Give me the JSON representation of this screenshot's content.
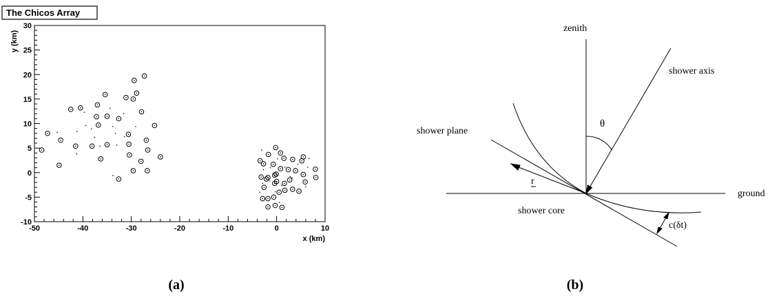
{
  "panel_a": {
    "title": "The Chicos Array",
    "caption": "(a)"
  },
  "panel_b": {
    "caption": "(b)",
    "labels": {
      "zenith": "zenith",
      "shower_axis": "shower axis",
      "theta": "θ",
      "shower_plane": "shower plane",
      "r_perp": "r",
      "ground": "ground",
      "shower_core": "shower core",
      "c_delta_t": "c(δt)"
    }
  },
  "chart_data": {
    "type": "scatter",
    "title": "The Chicos Array",
    "xlabel": "x (km)",
    "ylabel": "y (km)",
    "xlim": [
      -50,
      10
    ],
    "ylim": [
      -10,
      30
    ],
    "xticks": [
      -50,
      -40,
      -30,
      -20,
      -10,
      0,
      10
    ],
    "yticks": [
      -10,
      -5,
      0,
      5,
      10,
      15,
      20,
      25,
      30
    ],
    "grid": false,
    "series": [
      {
        "marker": "circle-dot",
        "points": [
          [
            -27.3,
            19.7
          ],
          [
            -29.4,
            18.8
          ],
          [
            -28.9,
            16.2
          ],
          [
            -35.4,
            15.9
          ],
          [
            -31.1,
            15.3
          ],
          [
            -29.6,
            15.0
          ],
          [
            -37.0,
            13.8
          ],
          [
            -40.5,
            13.2
          ],
          [
            -42.5,
            12.9
          ],
          [
            -27.9,
            12.4
          ],
          [
            -35.0,
            11.5
          ],
          [
            -37.2,
            11.4
          ],
          [
            -32.6,
            11.0
          ],
          [
            -36.8,
            9.7
          ],
          [
            -25.2,
            9.6
          ],
          [
            -47.3,
            8.0
          ],
          [
            -30.6,
            7.8
          ],
          [
            -26.9,
            6.6
          ],
          [
            -44.6,
            6.6
          ],
          [
            -30.5,
            5.8
          ],
          [
            -35.0,
            5.7
          ],
          [
            -38.1,
            5.4
          ],
          [
            -41.5,
            5.4
          ],
          [
            -48.5,
            4.6
          ],
          [
            -26.6,
            4.6
          ],
          [
            -30.4,
            3.6
          ],
          [
            -24.0,
            3.2
          ],
          [
            -36.3,
            2.8
          ],
          [
            -28.0,
            2.3
          ],
          [
            -44.9,
            1.5
          ],
          [
            -29.6,
            0.4
          ],
          [
            -26.7,
            0.4
          ],
          [
            -32.6,
            -1.3
          ],
          [
            -0.2,
            5.1
          ],
          [
            0.8,
            4.0
          ],
          [
            -1.7,
            3.7
          ],
          [
            5.5,
            3.2
          ],
          [
            1.5,
            2.9
          ],
          [
            5.2,
            2.4
          ],
          [
            -3.4,
            2.4
          ],
          [
            3.3,
            2.7
          ],
          [
            -2.7,
            1.8
          ],
          [
            -0.7,
            1.7
          ],
          [
            0.8,
            0.8
          ],
          [
            2.4,
            0.6
          ],
          [
            3.9,
            0.4
          ],
          [
            8.0,
            0.7
          ],
          [
            -0.1,
            -0.3
          ],
          [
            -0.4,
            -0.5
          ],
          [
            5.5,
            -0.4
          ],
          [
            -3.2,
            -0.9
          ],
          [
            8.1,
            -1.0
          ],
          [
            -1.8,
            -1.0
          ],
          [
            -2.1,
            -1.3
          ],
          [
            2.7,
            -1.5
          ],
          [
            0.0,
            -1.8
          ],
          [
            1.6,
            -2.2
          ],
          [
            5.9,
            -1.9
          ],
          [
            -0.4,
            -2.2
          ],
          [
            -2.6,
            -3.0
          ],
          [
            3.3,
            -3.4
          ],
          [
            1.7,
            -3.6
          ],
          [
            4.6,
            -3.8
          ],
          [
            0.5,
            -4.0
          ],
          [
            -2.9,
            -5.3
          ],
          [
            -1.8,
            -5.3
          ],
          [
            -0.6,
            -5.0
          ],
          [
            -1.8,
            -7.0
          ],
          [
            -0.3,
            -6.7
          ],
          [
            1.1,
            -7.1
          ]
        ]
      },
      {
        "marker": "dot",
        "points": [
          [
            -45.3,
            8.2
          ],
          [
            -41.2,
            8.4
          ],
          [
            -38.2,
            8.9
          ],
          [
            -33.8,
            9.4
          ],
          [
            -29.1,
            9.4
          ],
          [
            -39.7,
            12.3
          ],
          [
            -34.4,
            13.1
          ],
          [
            -31.6,
            12.0
          ],
          [
            -33.3,
            8.0
          ],
          [
            -31.4,
            7.3
          ],
          [
            -37.6,
            7.2
          ],
          [
            -41.3,
            3.8
          ],
          [
            -33.0,
            5.6
          ],
          [
            -29.9,
            0.7
          ],
          [
            -33.8,
            -0.6
          ],
          [
            -36.5,
            5.4
          ],
          [
            -39.4,
            9.6
          ],
          [
            -3.1,
            4.6
          ],
          [
            0.2,
            2.8
          ],
          [
            -2.7,
            0.6
          ],
          [
            -1.4,
            -1.7
          ],
          [
            1.7,
            1.1
          ],
          [
            1.0,
            -2.6
          ],
          [
            4.4,
            1.7
          ],
          [
            6.4,
            1.1
          ],
          [
            6.0,
            -2.9
          ],
          [
            -2.9,
            -2.2
          ],
          [
            -1.3,
            1.0
          ],
          [
            2.8,
            -0.8
          ],
          [
            -0.3,
            -3.9
          ],
          [
            3.2,
            -1.1
          ],
          [
            0.6,
            -6.1
          ],
          [
            -3.5,
            -4.0
          ],
          [
            6.7,
            2.9
          ]
        ]
      }
    ]
  }
}
